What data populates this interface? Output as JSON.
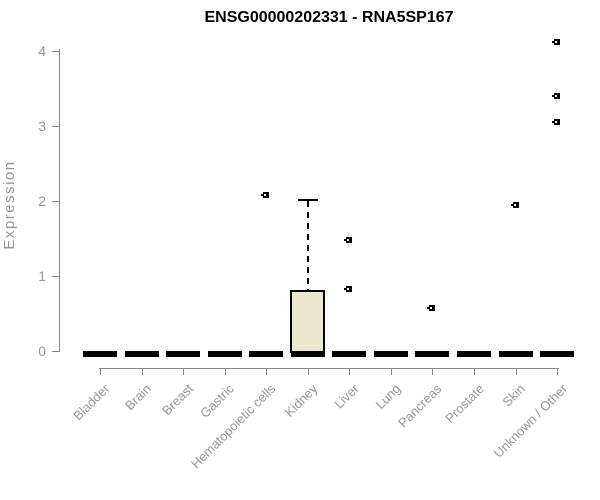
{
  "title": "ENSG00000202331 - RNA5SP167",
  "chart_data": {
    "type": "boxplot",
    "title": "ENSG00000202331 - RNA5SP167",
    "xlabel": "",
    "ylabel": "Expression",
    "ylim": [
      0,
      4.3
    ],
    "yticks": [
      0,
      1,
      2,
      3,
      4
    ],
    "grid": false,
    "legend": "none",
    "categories": [
      "Bladder",
      "Brain",
      "Breast",
      "Gastric",
      "Hematopoietic cells",
      "Kidney",
      "Liver",
      "Lung",
      "Pancreas",
      "Prostate",
      "Skin",
      "Unknown / Other"
    ],
    "series": [
      {
        "name": "Bladder",
        "median": 0,
        "q1": 0,
        "q3": 0,
        "whisker_low": 0,
        "whisker_high": 0,
        "outliers": []
      },
      {
        "name": "Brain",
        "median": 0,
        "q1": 0,
        "q3": 0,
        "whisker_low": 0,
        "whisker_high": 0,
        "outliers": []
      },
      {
        "name": "Breast",
        "median": 0,
        "q1": 0,
        "q3": 0,
        "whisker_low": 0,
        "whisker_high": 0,
        "outliers": []
      },
      {
        "name": "Gastric",
        "median": 0,
        "q1": 0,
        "q3": 0,
        "whisker_low": 0,
        "whisker_high": 0,
        "outliers": []
      },
      {
        "name": "Hematopoietic cells",
        "median": 0,
        "q1": 0,
        "q3": 0,
        "whisker_low": 0,
        "whisker_high": 0,
        "outliers": [
          2.08
        ]
      },
      {
        "name": "Kidney",
        "median": 0,
        "q1": 0,
        "q3": 0.82,
        "whisker_low": 0,
        "whisker_high": 2.03,
        "outliers": []
      },
      {
        "name": "Liver",
        "median": 0,
        "q1": 0,
        "q3": 0,
        "whisker_low": 0,
        "whisker_high": 0,
        "outliers": [
          1.48,
          0.83
        ]
      },
      {
        "name": "Lung",
        "median": 0,
        "q1": 0,
        "q3": 0,
        "whisker_low": 0,
        "whisker_high": 0,
        "outliers": []
      },
      {
        "name": "Pancreas",
        "median": 0,
        "q1": 0,
        "q3": 0,
        "whisker_low": 0,
        "whisker_high": 0,
        "outliers": [
          0.57
        ]
      },
      {
        "name": "Prostate",
        "median": 0,
        "q1": 0,
        "q3": 0,
        "whisker_low": 0,
        "whisker_high": 0,
        "outliers": []
      },
      {
        "name": "Skin",
        "median": 0,
        "q1": 0,
        "q3": 0,
        "whisker_low": 0,
        "whisker_high": 0,
        "outliers": [
          1.95
        ]
      },
      {
        "name": "Unknown / Other",
        "median": 0,
        "q1": 0,
        "q3": 0,
        "whisker_low": 0,
        "whisker_high": 0,
        "outliers": [
          4.12,
          3.4,
          3.05
        ]
      }
    ],
    "colors": {
      "box_fill": "#ece8cd",
      "box_border": "#000000",
      "median": "#000000",
      "outlier": "#000000",
      "axis": "#888888",
      "tick_text": "#979797",
      "title_text": "#000000",
      "background": "#ffffff"
    }
  }
}
